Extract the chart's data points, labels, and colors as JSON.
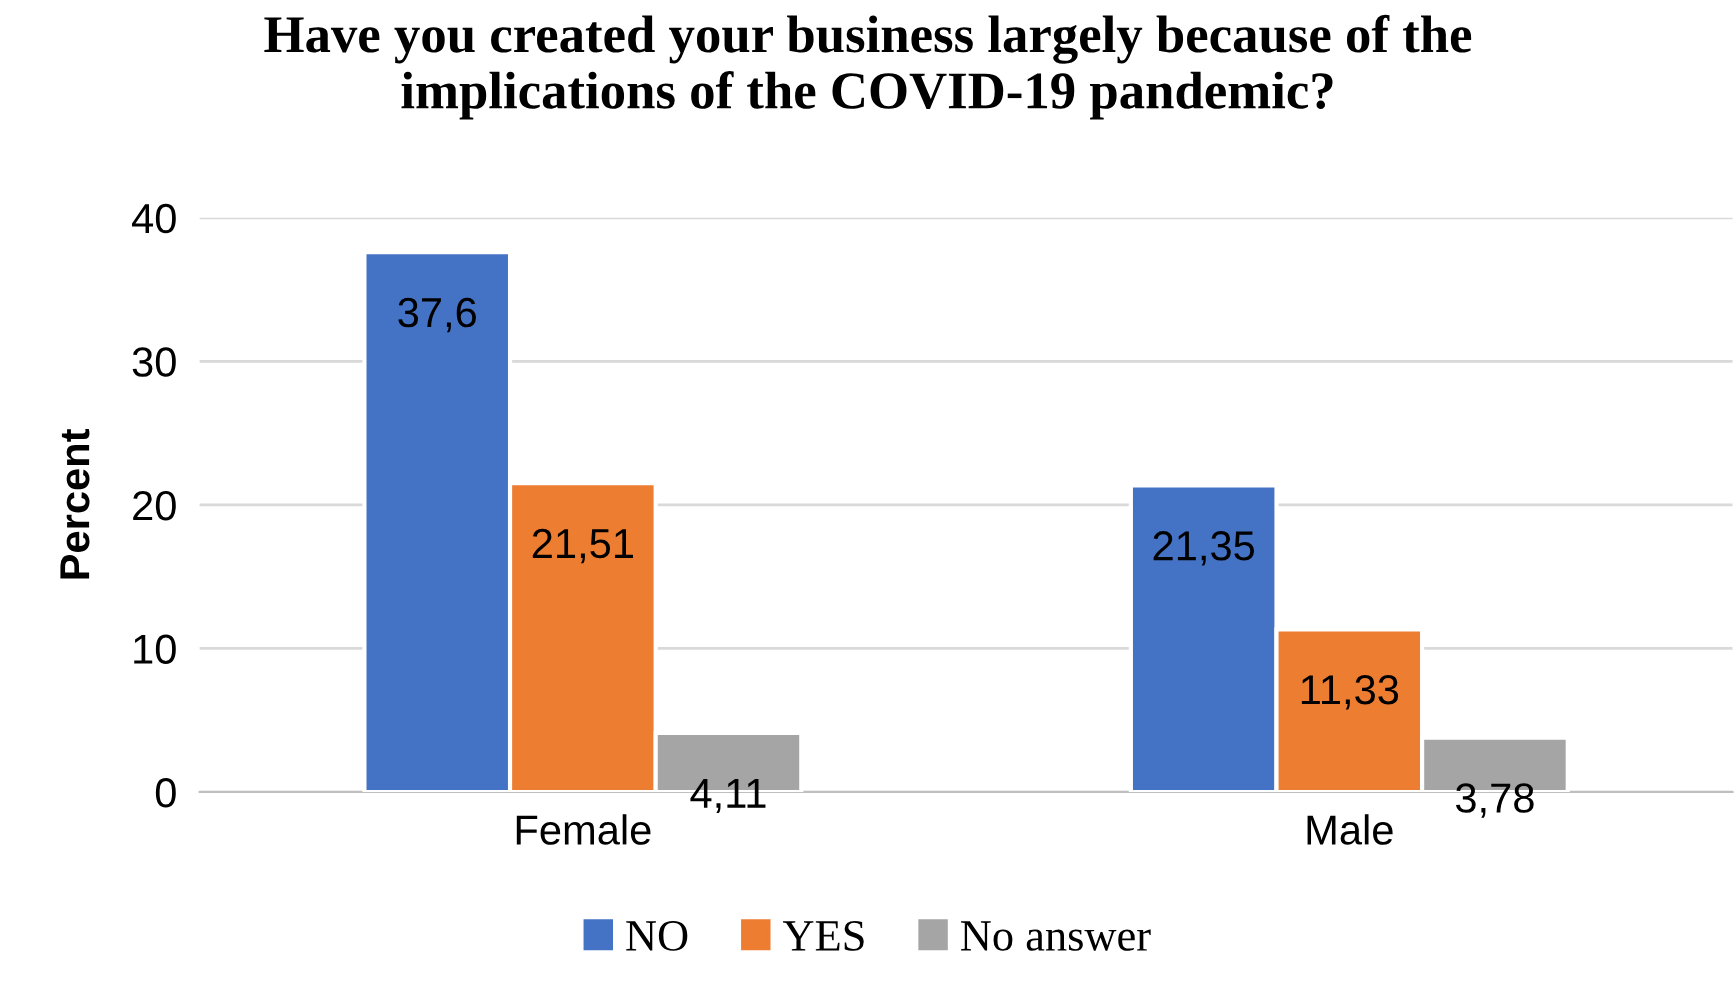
{
  "chart_data": {
    "type": "bar",
    "title": "Have you created your business largely because of the\nimplications of the COVID-19 pandemic?",
    "ylabel": "Percent",
    "categories": [
      "Female",
      "Male"
    ],
    "series": [
      {
        "name": "NO",
        "color": "#4472c4",
        "values": [
          37.6,
          21.35
        ],
        "value_labels": [
          "37,6",
          "21,35"
        ]
      },
      {
        "name": "YES",
        "color": "#ed7d31",
        "values": [
          21.51,
          11.33
        ],
        "value_labels": [
          "21,51",
          "11,33"
        ]
      },
      {
        "name": "No answer",
        "color": "#a5a5a5",
        "values": [
          4.11,
          3.78
        ],
        "value_labels": [
          "4,11",
          "3,78"
        ]
      }
    ],
    "ylim": [
      0,
      40
    ],
    "yticks": [
      0,
      10,
      20,
      30,
      40
    ],
    "grid": "y",
    "legend": "bottom"
  }
}
